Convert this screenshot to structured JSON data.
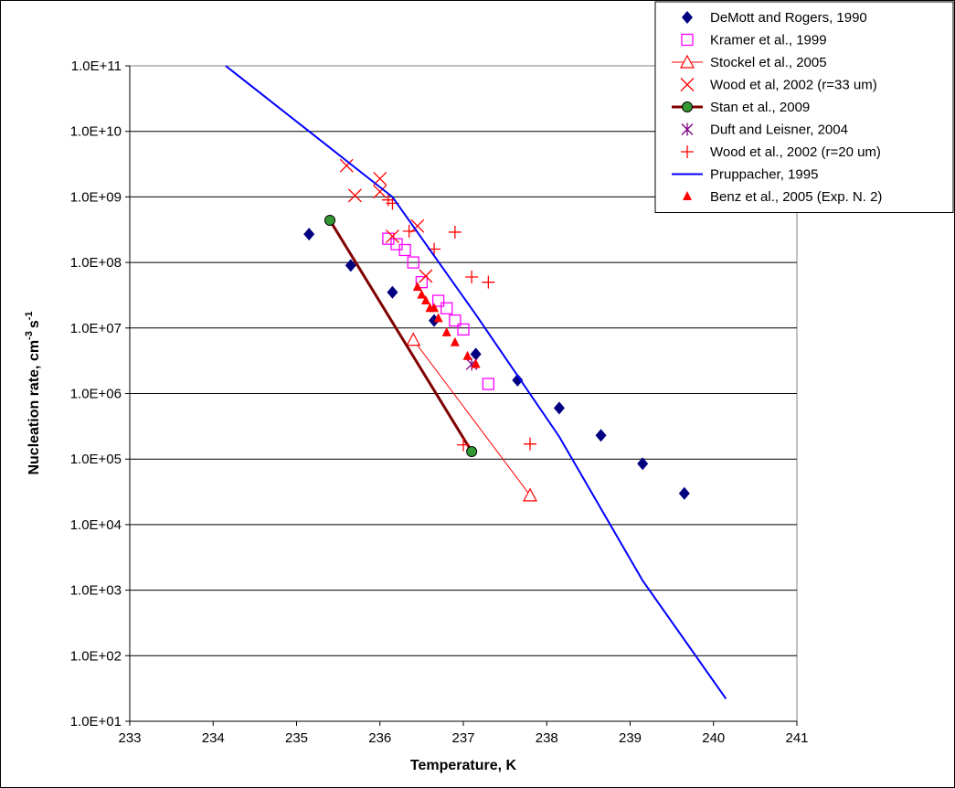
{
  "chart_data": {
    "type": "scatter",
    "xlabel": "Temperature, K",
    "ylabel": "Nucleation rate, cm",
    "ylabel_sup1": "-3",
    "ylabel_mid": "s",
    "ylabel_sup2": "-1",
    "xlim": [
      233,
      241
    ],
    "ylim_log10": [
      1,
      11
    ],
    "y_scale": "log",
    "grid": "horizontal",
    "legend_placement": "top-right",
    "x_ticks": [
      "233",
      "234",
      "235",
      "236",
      "237",
      "238",
      "239",
      "240",
      "241"
    ],
    "y_ticks": [
      "1.0E+01",
      "1.0E+02",
      "1.0E+03",
      "1.0E+04",
      "1.0E+05",
      "1.0E+06",
      "1.0E+07",
      "1.0E+08",
      "1.0E+09",
      "1.0E+10",
      "1.0E+11"
    ],
    "series": [
      {
        "name": "DeMott and Rogers, 1990",
        "marker": "diamond",
        "color": "#000080",
        "line": false,
        "x": [
          235.15,
          235.65,
          236.15,
          236.65,
          237.15,
          237.65,
          238.15,
          238.65,
          239.15,
          239.65
        ],
        "y": [
          270000000.0,
          90000000.0,
          35000000.0,
          13000000.0,
          4000000.0,
          1600000.0,
          600000.0,
          230000.0,
          85000.0,
          30000.0
        ]
      },
      {
        "name": "Kramer et al., 1999",
        "marker": "square-open",
        "color": "#ff00ff",
        "line": false,
        "x": [
          236.1,
          236.2,
          236.3,
          236.4,
          236.5,
          236.7,
          236.8,
          236.9,
          237.0,
          237.3
        ],
        "y": [
          230000000.0,
          190000000.0,
          155000000.0,
          100000000.0,
          50000000.0,
          26000000.0,
          20000000.0,
          13000000.0,
          9500000.0,
          1400000.0
        ]
      },
      {
        "name": "Stockel et al., 2005",
        "marker": "triangle-open",
        "color": "#ff0000",
        "line": true,
        "line_width": 1,
        "x": [
          236.4,
          237.8
        ],
        "y": [
          6600000.0,
          28000.0
        ]
      },
      {
        "name": "Wood et al, 2002 (r=33 um)",
        "marker": "x",
        "color": "#ff0000",
        "line": false,
        "x": [
          235.6,
          235.7,
          236.0,
          236.0,
          236.15,
          236.45,
          236.55
        ],
        "y": [
          3000000000.0,
          1050000000.0,
          1900000000.0,
          1200000000.0,
          250000000.0,
          360000000.0,
          62000000.0
        ]
      },
      {
        "name": "Stan et al., 2009",
        "marker": "circle",
        "color": "#800000",
        "fill": "#339933",
        "line": true,
        "line_width": 3,
        "x": [
          235.4,
          237.1
        ],
        "y": [
          440000000.0,
          130000.0
        ]
      },
      {
        "name": "Duft and Leisner, 2004",
        "marker": "asterisk",
        "color": "#800080",
        "line": false,
        "x": [
          237.1
        ],
        "y": [
          2800000.0
        ]
      },
      {
        "name": "Wood et al., 2002 (r=20 um)",
        "marker": "plus",
        "color": "#ff0000",
        "line": false,
        "x": [
          236.1,
          236.15,
          236.35,
          236.65,
          236.9,
          237.1,
          237.3,
          237.0,
          237.8
        ],
        "y": [
          900000000.0,
          800000000.0,
          300000000.0,
          160000000.0,
          290000000.0,
          60000000.0,
          50000000.0,
          165000.0,
          170000.0
        ]
      },
      {
        "name": "Pruppacher, 1995",
        "marker": "none",
        "color": "#0000ff",
        "line": true,
        "line_width": 2,
        "x": [
          234.15,
          235.15,
          236.15,
          237.15,
          238.15,
          239.15,
          240.15
        ],
        "y": [
          100000000000.0,
          10000000000.0,
          1000000000.0,
          16000000.0,
          220000.0,
          1400.0,
          22.0
        ]
      },
      {
        "name": "Benz et al., 2005 (Exp. N. 2)",
        "marker": "triangle",
        "color": "#ff0000",
        "line": false,
        "x": [
          236.45,
          236.5,
          236.55,
          236.6,
          236.65,
          236.7,
          236.8,
          236.9,
          237.05,
          237.15
        ],
        "y": [
          42000000.0,
          32000000.0,
          26000000.0,
          20000000.0,
          20000000.0,
          14000000.0,
          8500000.0,
          6000000.0,
          3700000.0,
          2800000.0
        ]
      }
    ]
  }
}
